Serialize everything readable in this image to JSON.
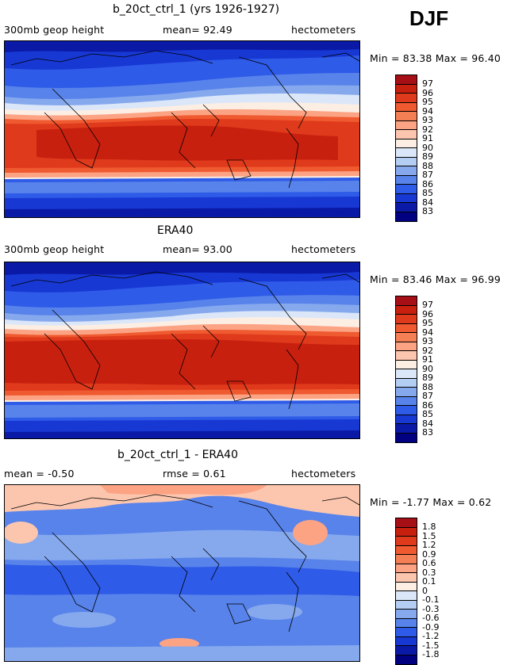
{
  "season": "DJF",
  "panels": [
    {
      "title": "b_20ct_ctrl_1 (yrs 1926-1927)",
      "left_label": "300mb  geop height",
      "center_label": "mean=  92.49",
      "right_label": "hectometers",
      "minmax": "Min =  83.38 Max =  96.40",
      "colorbar_labels": [
        "97",
        "96",
        "95",
        "94",
        "93",
        "92",
        "91",
        "90",
        "89",
        "88",
        "87",
        "86",
        "85",
        "84",
        "83"
      ]
    },
    {
      "title": "ERA40",
      "left_label": "300mb  geop height",
      "center_label": "mean=  93.00",
      "right_label": "hectometers",
      "minmax": "Min =  83.46 Max =  96.99",
      "colorbar_labels": [
        "97",
        "96",
        "95",
        "94",
        "93",
        "92",
        "91",
        "90",
        "89",
        "88",
        "87",
        "86",
        "85",
        "84",
        "83"
      ]
    },
    {
      "title": "b_20ct_ctrl_1 - ERA40",
      "left_label": "mean =  -0.50",
      "center_label": "rmse =   0.61",
      "right_label": "hectometers",
      "minmax": "Min =  -1.77 Max =   0.62",
      "colorbar_labels": [
        "1.8",
        "1.5",
        "1.2",
        "0.9",
        "0.6",
        "0.3",
        "0.1",
        "0",
        "-0.1",
        "-0.3",
        "-0.6",
        "-0.9",
        "-1.2",
        "-1.5",
        "-1.8"
      ]
    }
  ],
  "colors": {
    "scale": [
      "#a50f15",
      "#c8200f",
      "#e03a1c",
      "#ef5a30",
      "#f57f55",
      "#fca384",
      "#fcc6ae",
      "#fdeee4",
      "#dbe7f8",
      "#b4cdf3",
      "#86a9ee",
      "#5883ea",
      "#2e5be8",
      "#1838d4",
      "#0a1aa6",
      "#000080"
    ]
  }
}
